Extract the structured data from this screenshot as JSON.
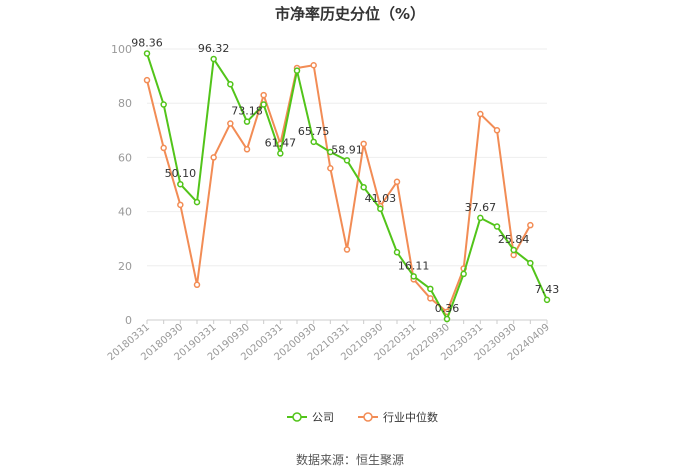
{
  "source": "数据来源：恒生聚源",
  "chart_data": {
    "type": "line",
    "title": "市净率历史分位（%）",
    "ylim": [
      0,
      100
    ],
    "yticks": [
      0,
      20,
      40,
      60,
      80,
      100
    ],
    "grid": true,
    "legend_position": "bottom",
    "x_ticks": [
      "20180331",
      "20180930",
      "20190331",
      "20190930",
      "20200331",
      "20200930",
      "20210331",
      "20210930",
      "20220331",
      "20220930",
      "20230331",
      "20230930",
      "20240409"
    ],
    "x": [
      "20180331",
      "20180630",
      "20180930",
      "20181231",
      "20190331",
      "20190630",
      "20190930",
      "20191231",
      "20200331",
      "20200630",
      "20200930",
      "20201231",
      "20210331",
      "20210630",
      "20210930",
      "20211231",
      "20220331",
      "20220630",
      "20220930",
      "20221231",
      "20230331",
      "20230630",
      "20230930",
      "20231231",
      "20240409"
    ],
    "series": [
      {
        "name": "公司",
        "color": "#52c41a",
        "values": [
          98.36,
          79.5,
          50.1,
          43.5,
          96.32,
          87,
          73.18,
          79.5,
          61.47,
          92,
          65.75,
          62,
          58.91,
          49,
          41.03,
          25,
          16.11,
          11.5,
          0.36,
          17,
          37.67,
          34.5,
          25.84,
          21,
          7.43
        ]
      },
      {
        "name": "行业中位数",
        "color": "#f28c55",
        "values": [
          88.5,
          63.5,
          42.5,
          13,
          60,
          72.5,
          63,
          83,
          65,
          93,
          94,
          56,
          26,
          65,
          42,
          51,
          15,
          8,
          3,
          19,
          76,
          70,
          24,
          35,
          null
        ]
      }
    ],
    "data_labels": [
      {
        "series": 0,
        "index": 0,
        "text": "98.36"
      },
      {
        "series": 0,
        "index": 2,
        "text": "50.10"
      },
      {
        "series": 0,
        "index": 4,
        "text": "96.32"
      },
      {
        "series": 0,
        "index": 6,
        "text": "73.18"
      },
      {
        "series": 0,
        "index": 8,
        "text": "61.47"
      },
      {
        "series": 0,
        "index": 10,
        "text": "65.75"
      },
      {
        "series": 0,
        "index": 12,
        "text": "58.91"
      },
      {
        "series": 0,
        "index": 14,
        "text": "41.03"
      },
      {
        "series": 0,
        "index": 16,
        "text": "16.11"
      },
      {
        "series": 0,
        "index": 18,
        "text": "0.36"
      },
      {
        "series": 0,
        "index": 20,
        "text": "37.67"
      },
      {
        "series": 0,
        "index": 22,
        "text": "25.84"
      },
      {
        "series": 0,
        "index": 24,
        "text": "7.43"
      }
    ]
  }
}
